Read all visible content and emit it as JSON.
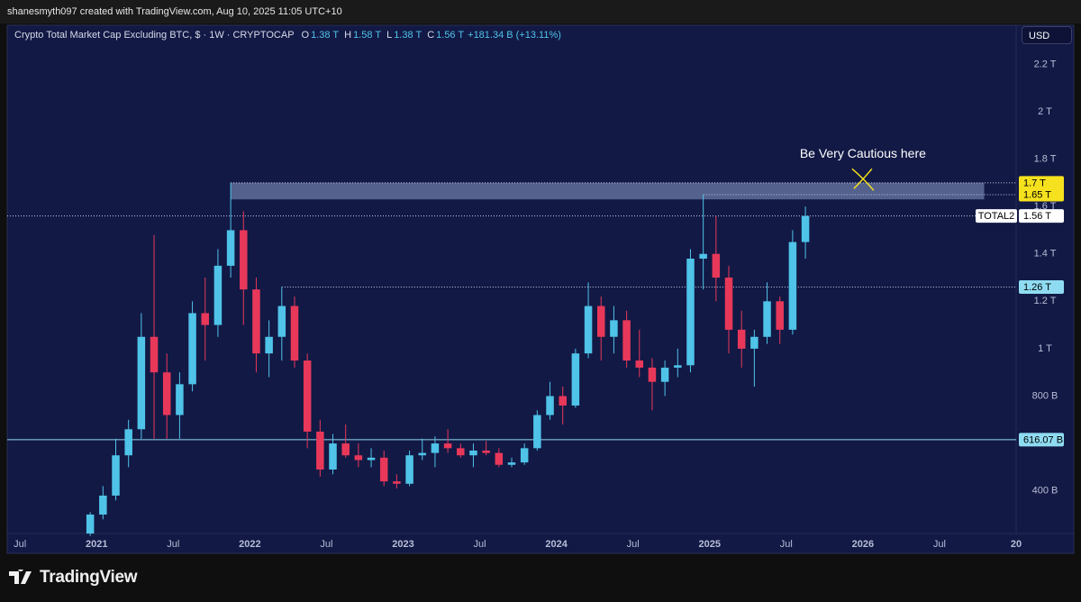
{
  "header": {
    "credit": "shanesmyth097 created with TradingView.com, Aug 10, 2025 11:05 UTC+10",
    "currency": "USD",
    "brand": "TradingView"
  },
  "chart_data": {
    "type": "candlestick",
    "title": "Crypto Total Market Cap Excluding BTC, $ · 1W · CRYPTOCAP",
    "ohlc_legend": [
      {
        "key": "O",
        "value": "1.38 T"
      },
      {
        "key": "H",
        "value": "1.58 T"
      },
      {
        "key": "L",
        "value": "1.38 T"
      },
      {
        "key": "C",
        "value": "1.56 T"
      }
    ],
    "change": "+181.34 B (+13.11%)",
    "symbol": "TOTAL2",
    "up_color": "#4fc3e8",
    "down_color": "#e8385a",
    "x": [
      "2020-12",
      "2021-01",
      "2021-02",
      "2021-03",
      "2021-04",
      "2021-05",
      "2021-06",
      "2021-07",
      "2021-08",
      "2021-09",
      "2021-10",
      "2021-11",
      "2021-12",
      "2022-01",
      "2022-02",
      "2022-03",
      "2022-04",
      "2022-05",
      "2022-06",
      "2022-07",
      "2022-08",
      "2022-09",
      "2022-10",
      "2022-11",
      "2022-12",
      "2023-01",
      "2023-02",
      "2023-03",
      "2023-04",
      "2023-05",
      "2023-06",
      "2023-07",
      "2023-08",
      "2023-09",
      "2023-10",
      "2023-11",
      "2023-12",
      "2024-01",
      "2024-02",
      "2024-03",
      "2024-04",
      "2024-05",
      "2024-06",
      "2024-07",
      "2024-08",
      "2024-09",
      "2024-10",
      "2024-11",
      "2024-12",
      "2025-01",
      "2025-02",
      "2025-03",
      "2025-04",
      "2025-05",
      "2025-06",
      "2025-07",
      "2025-08"
    ],
    "open": [
      0.22,
      0.3,
      0.38,
      0.55,
      0.66,
      1.05,
      0.9,
      0.72,
      0.85,
      1.15,
      1.1,
      1.35,
      1.5,
      1.25,
      0.98,
      1.05,
      1.18,
      0.95,
      0.65,
      0.49,
      0.6,
      0.55,
      0.53,
      0.54,
      0.44,
      0.43,
      0.55,
      0.56,
      0.6,
      0.58,
      0.55,
      0.57,
      0.56,
      0.51,
      0.52,
      0.58,
      0.72,
      0.8,
      0.76,
      0.98,
      1.18,
      1.05,
      1.12,
      0.95,
      0.92,
      0.86,
      0.92,
      0.93,
      1.38,
      1.4,
      1.3,
      1.08,
      1.0,
      1.05,
      1.2,
      1.08,
      1.45
    ],
    "high": [
      0.31,
      0.42,
      0.62,
      0.7,
      1.15,
      1.48,
      0.98,
      0.9,
      1.2,
      1.3,
      1.42,
      1.7,
      1.58,
      1.3,
      1.12,
      1.26,
      1.22,
      0.98,
      0.7,
      0.64,
      0.68,
      0.6,
      0.58,
      0.57,
      0.47,
      0.57,
      0.62,
      0.63,
      0.66,
      0.6,
      0.6,
      0.61,
      0.58,
      0.54,
      0.6,
      0.74,
      0.86,
      0.84,
      1.0,
      1.28,
      1.22,
      1.18,
      1.16,
      1.08,
      0.96,
      0.95,
      1.0,
      1.42,
      1.65,
      1.56,
      1.35,
      1.16,
      1.08,
      1.28,
      1.22,
      1.5,
      1.6
    ],
    "low": [
      0.21,
      0.28,
      0.36,
      0.5,
      0.62,
      0.62,
      0.62,
      0.62,
      0.82,
      0.95,
      1.05,
      1.3,
      1.1,
      0.9,
      0.88,
      0.95,
      0.92,
      0.58,
      0.46,
      0.47,
      0.54,
      0.5,
      0.5,
      0.42,
      0.41,
      0.42,
      0.53,
      0.5,
      0.56,
      0.54,
      0.5,
      0.55,
      0.5,
      0.5,
      0.51,
      0.57,
      0.7,
      0.68,
      0.75,
      0.96,
      0.95,
      0.98,
      0.92,
      0.88,
      0.74,
      0.8,
      0.88,
      0.9,
      1.25,
      1.2,
      0.98,
      0.92,
      0.84,
      1.02,
      1.02,
      1.06,
      1.38
    ],
    "close": [
      0.3,
      0.38,
      0.55,
      0.66,
      1.05,
      0.9,
      0.72,
      0.85,
      1.15,
      1.1,
      1.35,
      1.5,
      1.25,
      0.98,
      1.05,
      1.18,
      0.95,
      0.65,
      0.49,
      0.6,
      0.55,
      0.53,
      0.54,
      0.44,
      0.43,
      0.55,
      0.56,
      0.6,
      0.58,
      0.55,
      0.57,
      0.56,
      0.51,
      0.52,
      0.58,
      0.72,
      0.8,
      0.76,
      0.98,
      1.18,
      1.05,
      1.12,
      0.95,
      0.92,
      0.86,
      0.92,
      0.93,
      1.38,
      1.4,
      1.3,
      1.08,
      1.0,
      1.05,
      1.2,
      1.08,
      1.45,
      1.56
    ],
    "xlim": [
      "2020-06",
      "2027-01"
    ],
    "xticks": [
      {
        "value": "2020-07",
        "label": "Jul"
      },
      {
        "value": "2021-01",
        "label": "2021"
      },
      {
        "value": "2021-07",
        "label": "Jul"
      },
      {
        "value": "2022-01",
        "label": "2022"
      },
      {
        "value": "2022-07",
        "label": "Jul"
      },
      {
        "value": "2023-01",
        "label": "2023"
      },
      {
        "value": "2023-07",
        "label": "Jul"
      },
      {
        "value": "2024-01",
        "label": "2024"
      },
      {
        "value": "2024-07",
        "label": "Jul"
      },
      {
        "value": "2025-01",
        "label": "2025"
      },
      {
        "value": "2025-07",
        "label": "Jul"
      },
      {
        "value": "2026-01",
        "label": "2026"
      },
      {
        "value": "2026-07",
        "label": "Jul"
      },
      {
        "value": "2027-01",
        "label": "20"
      }
    ],
    "ylim": [
      0.22,
      2.365
    ],
    "yticks": [
      {
        "value": 0.4,
        "label": "400 B"
      },
      {
        "value": 0.8,
        "label": "800 B"
      },
      {
        "value": 1,
        "label": "1 T"
      },
      {
        "value": 1.2,
        "label": "1.2 T"
      },
      {
        "value": 1.4,
        "label": "1.4 T"
      },
      {
        "value": 1.6,
        "label": "1.6 T"
      },
      {
        "value": 1.8,
        "label": "1.8 T"
      },
      {
        "value": 2,
        "label": "2 T"
      },
      {
        "value": 2.2,
        "label": "2.2 T"
      }
    ],
    "grid": false,
    "levels": [
      {
        "value": 1.7,
        "label": "1.7 T",
        "from": "2021-11",
        "style": "dotted",
        "color": "#f5e11d"
      },
      {
        "value": 1.65,
        "label": "1.65 T",
        "from": "2024-12",
        "style": "dotted",
        "color": "#f5e11d"
      },
      {
        "value": 1.56,
        "label": "1.56 T",
        "from": "2020-06",
        "style": "dotted",
        "color": "#ffffff"
      },
      {
        "value": 1.26,
        "label": "1.26 T",
        "from": "2022-03",
        "style": "dotted",
        "color": "#8fdcf2"
      },
      {
        "value": 0.61607,
        "label": "616.07 B",
        "from": "2020-06",
        "style": "solid",
        "color": "#8fdcf2"
      }
    ],
    "zone": {
      "from": "2021-11",
      "to": "2026-10",
      "top": 1.7,
      "bottom": 1.63
    },
    "annotation": {
      "text": "Be Very Cautious here",
      "x": "2026-01",
      "y": 1.82
    }
  }
}
